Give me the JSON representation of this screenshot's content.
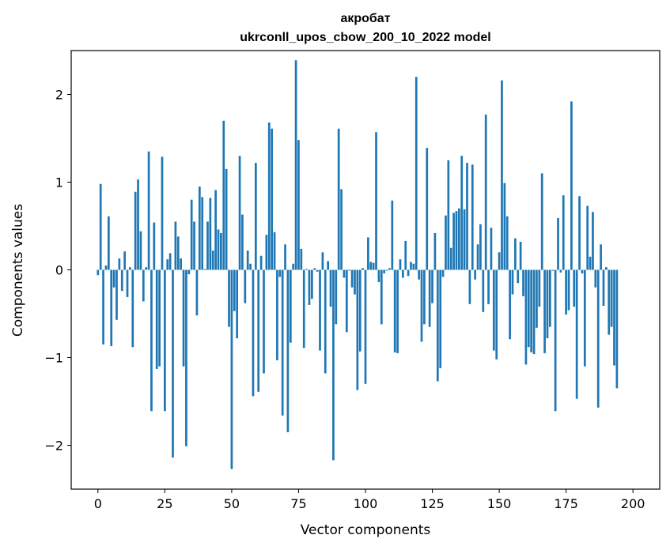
{
  "chart_data": {
    "type": "bar",
    "title": "акробат",
    "subtitle": "ukrconll_upos_cbow_200_10_2022 model",
    "xlabel": "Vector components",
    "ylabel": "Components values",
    "xlim": [
      -10,
      210
    ],
    "ylim": [
      -2.5,
      2.5
    ],
    "xticks": [
      0,
      25,
      50,
      75,
      100,
      125,
      150,
      175,
      200
    ],
    "yticks": [
      -2,
      -1,
      0,
      1,
      2
    ],
    "ytick_labels": [
      "−2",
      "−1",
      "0",
      "1",
      "2"
    ],
    "bar_color": "#1f77b4",
    "grid": false,
    "values": [
      -0.06,
      0.98,
      -0.85,
      0.05,
      0.61,
      -0.87,
      -0.2,
      -0.57,
      0.13,
      -0.24,
      0.21,
      -0.31,
      0.03,
      -0.88,
      0.89,
      1.03,
      0.44,
      -0.36,
      0.03,
      1.35,
      -1.61,
      0.54,
      -1.13,
      -1.1,
      1.29,
      -1.61,
      0.12,
      0.19,
      -2.14,
      0.55,
      0.38,
      0.13,
      -1.1,
      -2.01,
      -0.05,
      0.8,
      0.55,
      -0.52,
      0.95,
      0.83,
      0.01,
      0.55,
      0.82,
      0.22,
      0.91,
      0.46,
      0.42,
      1.7,
      1.15,
      -0.65,
      -2.27,
      -0.47,
      -0.78,
      1.3,
      0.63,
      -0.38,
      0.22,
      0.07,
      -1.44,
      1.22,
      -1.39,
      0.16,
      -1.18,
      0.4,
      1.68,
      1.61,
      0.43,
      -1.03,
      -0.08,
      -1.66,
      0.29,
      -1.85,
      -0.83,
      0.07,
      2.39,
      1.48,
      0.24,
      -0.89,
      0.01,
      -0.4,
      -0.33,
      0.02,
      -0.02,
      -0.92,
      0.2,
      -1.18,
      0.1,
      -0.42,
      -2.17,
      -0.62,
      1.61,
      0.92,
      -0.09,
      -0.71,
      -0.01,
      -0.2,
      -0.28,
      -1.37,
      -0.93,
      0.02,
      -1.3,
      0.37,
      0.09,
      0.08,
      1.57,
      -0.14,
      -0.62,
      -0.04,
      -0.01,
      0.02,
      0.79,
      -0.94,
      -0.95,
      0.12,
      -0.09,
      0.33,
      -0.07,
      0.09,
      0.07,
      2.2,
      -0.11,
      -0.82,
      -0.62,
      1.39,
      -0.65,
      -0.38,
      0.42,
      -1.27,
      -1.12,
      -0.08,
      0.62,
      1.25,
      0.25,
      0.65,
      0.67,
      0.7,
      1.3,
      0.69,
      1.22,
      -0.39,
      1.2,
      -0.11,
      0.29,
      0.52,
      -0.48,
      1.77,
      -0.39,
      0.48,
      -0.92,
      -1.02,
      0.2,
      2.16,
      0.99,
      0.61,
      -0.79,
      -0.28,
      0.36,
      -0.15,
      0.32,
      -0.3,
      -1.08,
      -0.88,
      -0.94,
      -0.96,
      -0.66,
      -0.42,
      1.1,
      -0.95,
      -0.78,
      -0.65,
      -0.01,
      -1.61,
      0.59,
      -0.03,
      0.85,
      -0.51,
      -0.46,
      1.92,
      -0.42,
      -1.47,
      0.84,
      -0.04,
      -1.1,
      0.73,
      0.15,
      0.66,
      -0.2,
      -1.57,
      0.29,
      -0.41,
      0.03,
      -0.74,
      -0.65,
      -1.09,
      -1.35
    ]
  }
}
